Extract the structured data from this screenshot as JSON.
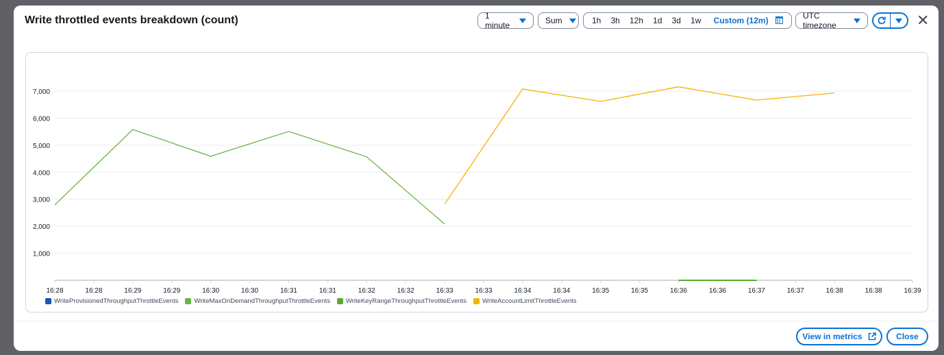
{
  "modal": {
    "title": "Write throttled events breakdown (count)",
    "period": "1 minute",
    "statistic": "Sum",
    "ranges": [
      "1h",
      "3h",
      "12h",
      "1d",
      "3d",
      "1w"
    ],
    "custom_range": "Custom (12m)",
    "timezone": "UTC timezone",
    "close_icon": "close-icon",
    "footer": {
      "view_in_metrics": "View in metrics",
      "close": "Close"
    }
  },
  "chart_data": {
    "type": "line",
    "x_tick_labels": [
      "16:28",
      "16:28",
      "16:29",
      "16:29",
      "16:30",
      "16:30",
      "16:31",
      "16:31",
      "16:32",
      "16:32",
      "16:33",
      "16:33",
      "16:34",
      "16:34",
      "16:35",
      "16:35",
      "16:36",
      "16:36",
      "16:37",
      "16:37",
      "16:38",
      "16:38",
      "16:39"
    ],
    "y_tick_labels": [
      "1,000",
      "2,000",
      "3,000",
      "4,000",
      "5,000",
      "6,000",
      "7,000"
    ],
    "y_ticks": [
      1000,
      2000,
      3000,
      4000,
      5000,
      6000,
      7000
    ],
    "ylim": [
      0,
      7000
    ],
    "xlim": [
      "16:28",
      "16:39"
    ],
    "grid": true,
    "legend_position": "bottom-left",
    "series": [
      {
        "name": "WriteProvisionedThroughputThrottleEvents",
        "color": "#0f5bb5",
        "x": [],
        "values": []
      },
      {
        "name": "WriteMaxOnDemandThroughputThrottleEvents",
        "color": "#6bb545",
        "x": [
          "16:28",
          "16:29",
          "16:30",
          "16:31",
          "16:32",
          "16:33"
        ],
        "values": [
          2790,
          5580,
          4590,
          5510,
          4570,
          2080
        ]
      },
      {
        "name": "WriteKeyRangeThroughputThrottleEvents",
        "color": "#5aaa2c",
        "x": [
          "16:36",
          "16:37"
        ],
        "values": [
          0,
          0
        ]
      },
      {
        "name": "WriteAccountLimitThrottleEvents",
        "color": "#f5b300",
        "x": [
          "16:33",
          "16:34",
          "16:35",
          "16:36",
          "16:37",
          "16:38"
        ],
        "values": [
          2820,
          7080,
          6620,
          7160,
          6670,
          6930
        ]
      }
    ]
  }
}
